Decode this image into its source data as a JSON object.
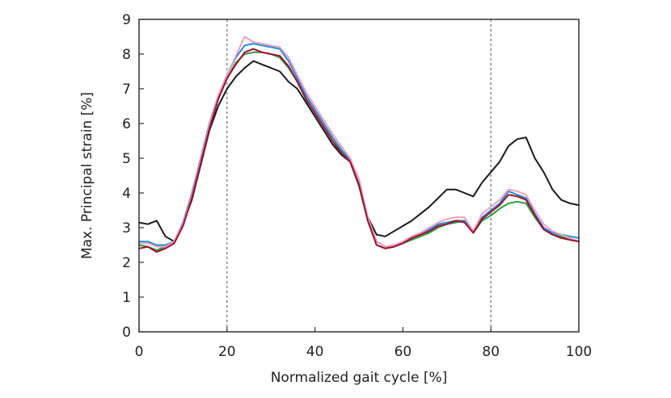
{
  "chart_data": {
    "type": "line",
    "title": "",
    "xlabel": "Normalized gait cycle [%]",
    "ylabel": "Max. Principal strain [%]",
    "xlim": [
      0,
      100
    ],
    "ylim": [
      0,
      9
    ],
    "x_ticks": [
      0,
      20,
      40,
      60,
      80,
      100
    ],
    "y_ticks": [
      0,
      1,
      2,
      3,
      4,
      5,
      6,
      7,
      8,
      9
    ],
    "x_tick_labels": [
      "0",
      "20",
      "40",
      "60",
      "80",
      "100"
    ],
    "y_tick_labels": [
      "0",
      "1",
      "2",
      "3",
      "4",
      "5",
      "6",
      "7",
      "8",
      "9"
    ],
    "grid": false,
    "legend": "none",
    "reference_lines_x": [
      20,
      80
    ],
    "x": [
      0,
      2,
      4,
      6,
      8,
      10,
      12,
      14,
      16,
      18,
      20,
      22,
      24,
      26,
      28,
      30,
      32,
      34,
      36,
      38,
      40,
      42,
      44,
      46,
      48,
      50,
      52,
      54,
      56,
      58,
      60,
      62,
      64,
      66,
      68,
      70,
      72,
      74,
      76,
      78,
      80,
      82,
      84,
      86,
      88,
      90,
      92,
      94,
      96,
      98,
      100
    ],
    "series": [
      {
        "color": "#1a1a1a",
        "values": [
          3.15,
          3.1,
          3.2,
          2.75,
          2.6,
          3.1,
          3.8,
          4.8,
          5.8,
          6.5,
          7.0,
          7.35,
          7.6,
          7.8,
          7.7,
          7.6,
          7.5,
          7.2,
          7.0,
          6.6,
          6.2,
          5.8,
          5.4,
          5.1,
          4.9,
          4.2,
          3.3,
          2.8,
          2.75,
          2.9,
          3.05,
          3.2,
          3.4,
          3.6,
          3.85,
          4.1,
          4.1,
          4.0,
          3.9,
          4.3,
          4.6,
          4.9,
          5.35,
          5.55,
          5.6,
          5.0,
          4.6,
          4.1,
          3.8,
          3.7,
          3.65
        ]
      },
      {
        "color": "#2a9d3a",
        "values": [
          2.5,
          2.45,
          2.35,
          2.45,
          2.6,
          3.1,
          3.9,
          4.9,
          5.9,
          6.7,
          7.3,
          7.75,
          8.0,
          8.05,
          8.05,
          8.0,
          7.9,
          7.6,
          7.2,
          6.7,
          6.3,
          5.9,
          5.5,
          5.2,
          4.9,
          4.2,
          3.2,
          2.5,
          2.4,
          2.45,
          2.55,
          2.65,
          2.75,
          2.85,
          3.0,
          3.1,
          3.15,
          3.2,
          2.85,
          3.2,
          3.35,
          3.55,
          3.7,
          3.75,
          3.7,
          3.3,
          2.95,
          2.8,
          2.75,
          2.65,
          2.6
        ]
      },
      {
        "color": "#1f8dd6",
        "values": [
          2.6,
          2.6,
          2.5,
          2.5,
          2.6,
          3.15,
          4.0,
          5.0,
          6.0,
          6.8,
          7.4,
          7.9,
          8.25,
          8.3,
          8.25,
          8.2,
          8.15,
          7.8,
          7.3,
          6.8,
          6.4,
          6.0,
          5.6,
          5.25,
          4.95,
          4.4,
          3.3,
          2.6,
          2.45,
          2.5,
          2.6,
          2.75,
          2.85,
          2.95,
          3.1,
          3.15,
          3.2,
          3.2,
          2.85,
          3.3,
          3.5,
          3.7,
          4.05,
          3.95,
          3.85,
          3.4,
          3.0,
          2.85,
          2.8,
          2.75,
          2.7
        ]
      },
      {
        "color": "#f0a0c0",
        "values": [
          2.55,
          2.55,
          2.45,
          2.45,
          2.6,
          3.1,
          3.95,
          4.95,
          5.95,
          6.8,
          7.4,
          7.95,
          8.5,
          8.35,
          8.3,
          8.25,
          8.2,
          7.9,
          7.4,
          6.9,
          6.5,
          6.1,
          5.7,
          5.35,
          5.0,
          4.4,
          3.3,
          2.6,
          2.45,
          2.5,
          2.6,
          2.75,
          2.85,
          3.0,
          3.15,
          3.25,
          3.3,
          3.3,
          2.9,
          3.4,
          3.6,
          3.8,
          4.1,
          4.05,
          3.95,
          3.5,
          3.1,
          2.9,
          2.8,
          2.7,
          2.6
        ]
      },
      {
        "color": "#a01030",
        "values": [
          2.4,
          2.45,
          2.3,
          2.4,
          2.55,
          3.05,
          3.85,
          4.85,
          5.85,
          6.7,
          7.3,
          7.7,
          8.05,
          8.15,
          8.05,
          8.0,
          7.95,
          7.65,
          7.2,
          6.7,
          6.3,
          5.9,
          5.5,
          5.15,
          4.9,
          4.25,
          3.2,
          2.5,
          2.4,
          2.45,
          2.55,
          2.7,
          2.8,
          2.9,
          3.05,
          3.1,
          3.2,
          3.15,
          2.85,
          3.25,
          3.45,
          3.65,
          3.95,
          3.9,
          3.8,
          3.35,
          2.95,
          2.8,
          2.7,
          2.65,
          2.6
        ]
      }
    ]
  }
}
